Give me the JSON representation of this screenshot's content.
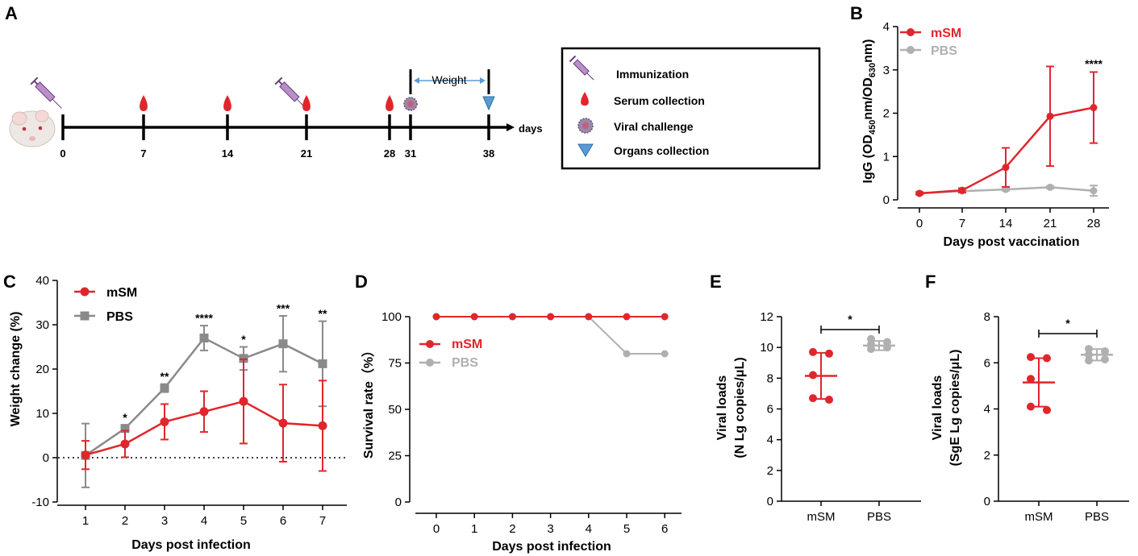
{
  "colors": {
    "mSM": "#e0262c",
    "PBS": "#8a8a8a",
    "PBS_light": "#b0b0b0",
    "drop": "#e0262c",
    "triangle": "#5b9bd5"
  },
  "panel_labels": [
    "A",
    "B",
    "C",
    "D",
    "E",
    "F"
  ],
  "timeline": {
    "days": [
      "0",
      "7",
      "14",
      "21",
      "28",
      "31",
      "38"
    ],
    "axis_unit": "days",
    "weight_label": "Weight",
    "legend": [
      "Immunization",
      "Serum collection",
      "Viral challenge",
      "Organs collection"
    ]
  },
  "chart_data": [
    {
      "panel": "B",
      "type": "line",
      "x": [
        0,
        7,
        14,
        21,
        28
      ],
      "xticks": [
        "0",
        "7",
        "14",
        "21",
        "28"
      ],
      "xlabel": "Days post vaccination",
      "ylabel": "IgG (OD450nm/OD630nm)",
      "ylabel_parts": [
        "IgG (OD",
        "450",
        "nm/OD",
        "630",
        "nm)"
      ],
      "ylim": [
        0,
        4
      ],
      "yticks": [
        "0",
        "1",
        "2",
        "3",
        "4"
      ],
      "series": [
        {
          "name": "mSM",
          "values": [
            0.15,
            0.22,
            0.75,
            1.93,
            2.13
          ],
          "err": [
            0.03,
            0.05,
            0.45,
            1.15,
            0.82
          ]
        },
        {
          "name": "PBS",
          "values": [
            0.15,
            0.2,
            0.24,
            0.29,
            0.21
          ],
          "err": [
            0.02,
            0.03,
            0.03,
            0.03,
            0.12
          ]
        }
      ],
      "annotations": [
        {
          "x": 28,
          "y": 3.05,
          "text": "****"
        }
      ]
    },
    {
      "panel": "C",
      "type": "line",
      "x": [
        1,
        2,
        3,
        4,
        5,
        6,
        7
      ],
      "xticks": [
        "1",
        "2",
        "3",
        "4",
        "5",
        "6",
        "7"
      ],
      "xlabel": "Days post infection",
      "ylabel": "Weight change (%)",
      "ylim": [
        -10,
        40
      ],
      "yticks": [
        "-10",
        "0",
        "10",
        "20",
        "30",
        "40"
      ],
      "baseline": 0,
      "series": [
        {
          "name": "mSM",
          "values": [
            0.6,
            3.1,
            8.1,
            10.4,
            12.7,
            7.8,
            7.2
          ],
          "err": [
            3.2,
            3.0,
            4.0,
            4.6,
            9.5,
            8.7,
            10.2
          ]
        },
        {
          "name": "PBS",
          "values": [
            0.5,
            6.6,
            15.7,
            27.0,
            22.4,
            25.7,
            21.2
          ],
          "err": [
            7.2,
            0.8,
            0.9,
            2.8,
            2.6,
            6.3,
            9.6
          ]
        }
      ],
      "annotations": [
        {
          "x": 2,
          "y": 8.2,
          "text": "*"
        },
        {
          "x": 3,
          "y": 17.5,
          "text": "**"
        },
        {
          "x": 4,
          "y": 30.6,
          "text": "****"
        },
        {
          "x": 5,
          "y": 25.8,
          "text": "*"
        },
        {
          "x": 6,
          "y": 32.8,
          "text": "***"
        },
        {
          "x": 7,
          "y": 31.6,
          "text": "**"
        }
      ]
    },
    {
      "panel": "D",
      "type": "line",
      "x": [
        0,
        1,
        2,
        3,
        4,
        5,
        6
      ],
      "xticks": [
        "0",
        "1",
        "2",
        "3",
        "4",
        "5",
        "6"
      ],
      "xlabel": "Days post infection",
      "ylabel": "Survival rate（%）",
      "ylim": [
        0,
        100
      ],
      "yticks": [
        "0",
        "25",
        "50",
        "75",
        "100"
      ],
      "series": [
        {
          "name": "mSM",
          "values": [
            100,
            100,
            100,
            100,
            100,
            100,
            100
          ]
        },
        {
          "name": "PBS",
          "values": [
            100,
            100,
            100,
            100,
            100,
            80,
            80
          ]
        }
      ]
    },
    {
      "panel": "E",
      "type": "scatter",
      "categories": [
        "mSM",
        "PBS"
      ],
      "ylabel": [
        "Viral loads",
        "(N Lg copies/μL)"
      ],
      "ylim": [
        0,
        12
      ],
      "yticks": [
        "0",
        "2",
        "4",
        "6",
        "8",
        "10",
        "12"
      ],
      "series": [
        {
          "name": "mSM",
          "points": [
            9.7,
            9.6,
            8.2,
            6.7,
            6.6
          ],
          "mean": 8.15,
          "err": 1.5
        },
        {
          "name": "PBS",
          "points": [
            10.55,
            10.35,
            10.2,
            10.0,
            9.9
          ],
          "mean": 10.12,
          "err": 0.3
        }
      ],
      "significance": "*"
    },
    {
      "panel": "F",
      "type": "scatter",
      "categories": [
        "mSM",
        "PBS"
      ],
      "ylabel": [
        "Viral loads",
        "(SgE Lg copies/μL)"
      ],
      "ylim": [
        0,
        8
      ],
      "yticks": [
        "0",
        "2",
        "4",
        "6",
        "8"
      ],
      "series": [
        {
          "name": "mSM",
          "points": [
            6.25,
            6.2,
            5.3,
            4.1,
            3.95
          ],
          "mean": 5.15,
          "err": 1.05
        },
        {
          "name": "PBS",
          "points": [
            6.6,
            6.5,
            6.35,
            6.15,
            6.1
          ],
          "mean": 6.35,
          "err": 0.25
        }
      ],
      "significance": "*"
    }
  ]
}
